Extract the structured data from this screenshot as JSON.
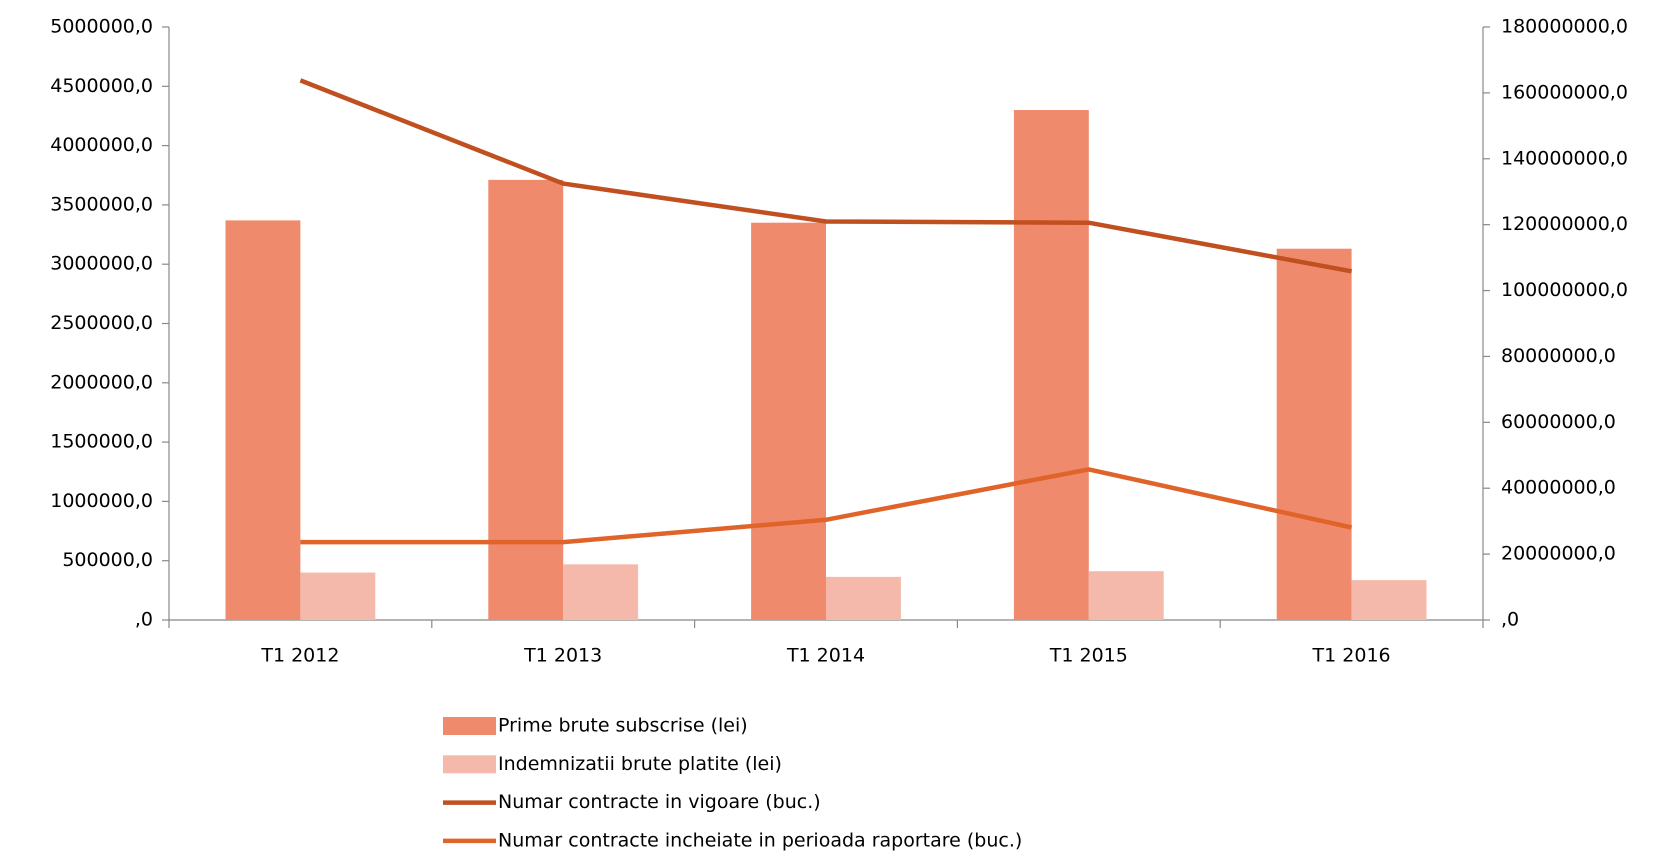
{
  "chart_data": {
    "type": "bar",
    "categories": [
      "T1 2012",
      "T1 2013",
      "T1 2014",
      "T1 2015",
      "T1 2016"
    ],
    "series": [
      {
        "name": "Prime brute subscrise (lei)",
        "type": "bar",
        "axis": "y2",
        "color": "#ef8a6d",
        "values": [
          121300000,
          133600000,
          120600000,
          154800000,
          112700000
        ]
      },
      {
        "name": "Indemnizatii brute platite (lei)",
        "type": "bar",
        "axis": "y2",
        "color": "#f5b9ab",
        "values": [
          14400000,
          16900000,
          13100000,
          14800000,
          12100000
        ]
      },
      {
        "name": "Numar contracte in vigoare (buc.)",
        "type": "line",
        "axis": "y",
        "color": "#c0501f",
        "values": [
          4550000,
          3680000,
          3360000,
          3350000,
          2940000
        ]
      },
      {
        "name": "Numar contracte incheiate in perioada raportare (buc.)",
        "type": "line",
        "axis": "y",
        "color": "#e0642a",
        "values": [
          657000,
          657000,
          845000,
          1270000,
          780000
        ]
      }
    ],
    "ylim": [
      0,
      5000000
    ],
    "yticks": [
      {
        "value": 0,
        "label": ",0"
      },
      {
        "value": 500000,
        "label": "500000,0"
      },
      {
        "value": 1000000,
        "label": "1000000,0"
      },
      {
        "value": 1500000,
        "label": "1500000,0"
      },
      {
        "value": 2000000,
        "label": "2000000,0"
      },
      {
        "value": 2500000,
        "label": "2500000,0"
      },
      {
        "value": 3000000,
        "label": "3000000,0"
      },
      {
        "value": 3500000,
        "label": "3500000,0"
      },
      {
        "value": 4000000,
        "label": "4000000,0"
      },
      {
        "value": 4500000,
        "label": "4500000,0"
      },
      {
        "value": 5000000,
        "label": "5000000,0"
      }
    ],
    "y2lim": [
      0,
      180000000
    ],
    "y2ticks": [
      {
        "value": 0,
        "label": ",0"
      },
      {
        "value": 20000000,
        "label": "20000000,0"
      },
      {
        "value": 40000000,
        "label": "40000000,0"
      },
      {
        "value": 60000000,
        "label": "60000000,0"
      },
      {
        "value": 80000000,
        "label": "80000000,0"
      },
      {
        "value": 100000000,
        "label": "100000000,0"
      },
      {
        "value": 120000000,
        "label": "120000000,0"
      },
      {
        "value": 140000000,
        "label": "140000000,0"
      },
      {
        "value": 160000000,
        "label": "160000000,0"
      },
      {
        "value": 180000000,
        "label": "180000000,0"
      }
    ],
    "grid": false,
    "legend": "bottom"
  }
}
